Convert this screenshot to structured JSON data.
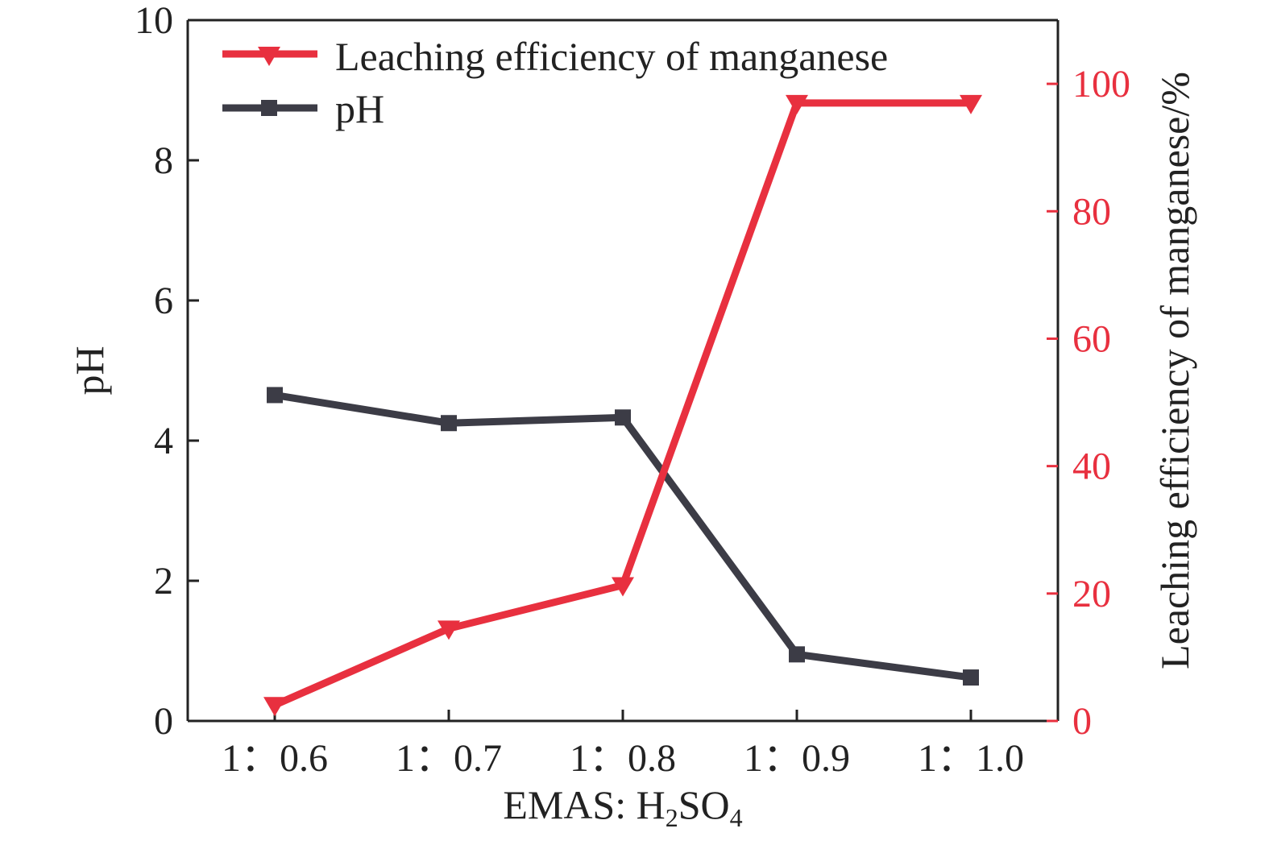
{
  "chart_data": {
    "type": "line",
    "xlabel": "EMAS: H₂SO₄",
    "categories": [
      "1：0.6",
      "1：0.7",
      "1：0.8",
      "1：0.9",
      "1：1.0"
    ],
    "y_left": {
      "label": "pH",
      "lim": [
        0,
        10
      ],
      "ticks": [
        "0",
        "2",
        "4",
        "6",
        "8",
        "10"
      ]
    },
    "y_right": {
      "label": "Leaching efficiency of manganese/%",
      "lim": [
        0,
        110
      ],
      "ticks": [
        "0",
        "20",
        "40",
        "60",
        "80",
        "100"
      ]
    },
    "series": [
      {
        "name": "Leaching efficiency of manganese",
        "axis": "right",
        "marker": "triangle-down",
        "color": "#e8303f",
        "values": [
          2.5,
          14.5,
          21.3,
          97.0,
          97.0
        ]
      },
      {
        "name": "pH",
        "axis": "left",
        "marker": "square",
        "color": "#3c3c46",
        "values": [
          4.65,
          4.25,
          4.33,
          0.95,
          0.62
        ]
      }
    ],
    "legend_position": "top-left",
    "grid": false
  }
}
